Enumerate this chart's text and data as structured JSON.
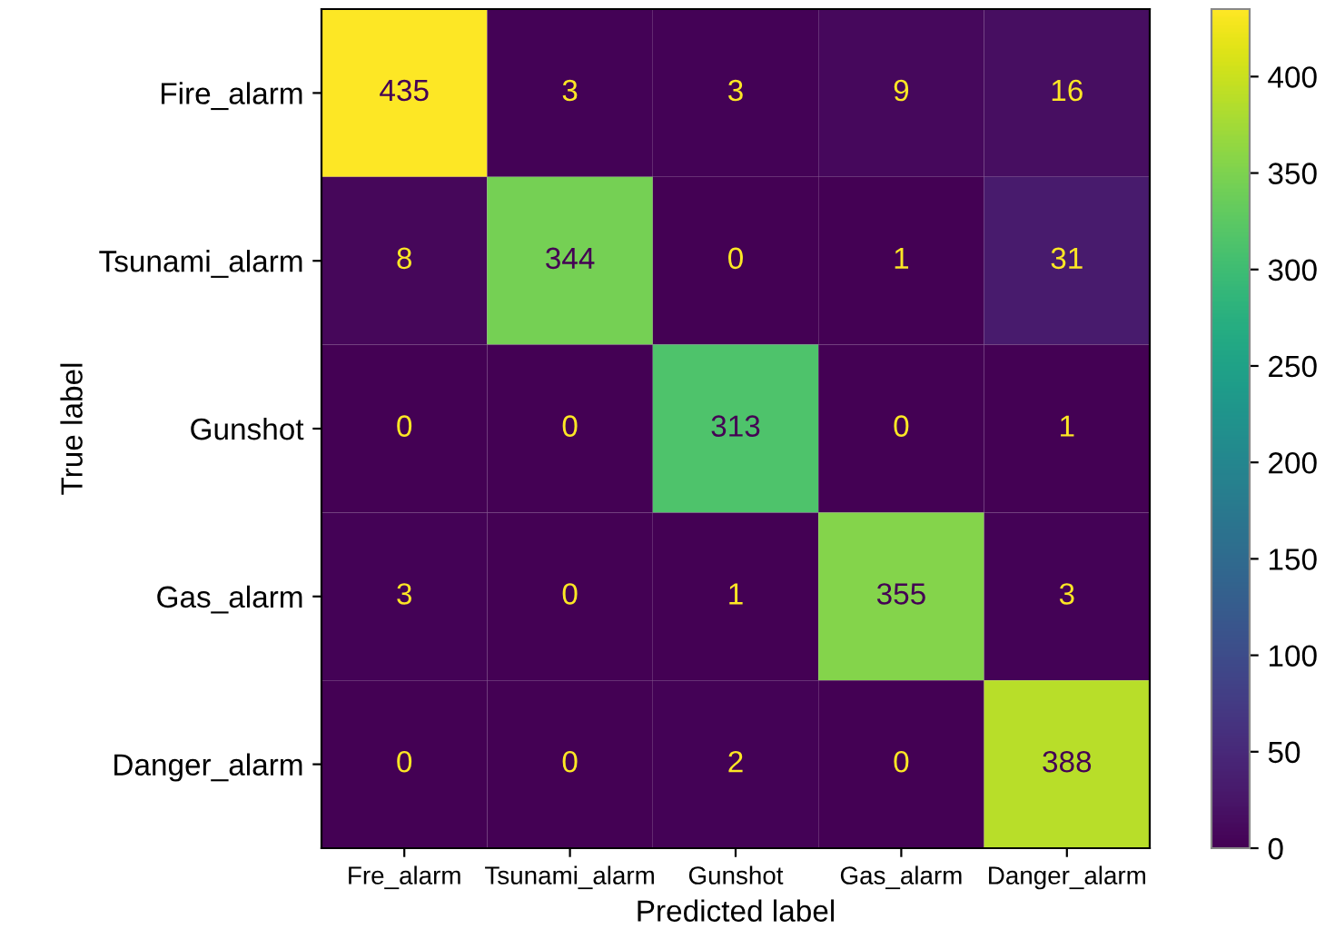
{
  "chart_data": {
    "type": "heatmap",
    "xlabel": "Predicted label",
    "ylabel": "True label",
    "categories": [
      "Fre_alarm",
      "Tsunami_alarm",
      "Gunshot",
      "Gas_alarm",
      "Danger_alarm"
    ],
    "y_categories": [
      "Fire_alarm",
      "Tsunami_alarm",
      "Gunshot",
      "Gas_alarm",
      "Danger_alarm"
    ],
    "cells": [
      [
        435,
        3,
        3,
        9,
        16
      ],
      [
        8,
        344,
        0,
        1,
        31
      ],
      [
        0,
        0,
        313,
        0,
        1
      ],
      [
        3,
        0,
        1,
        355,
        3
      ],
      [
        0,
        0,
        2,
        0,
        388
      ]
    ],
    "clim": [
      0,
      435
    ],
    "cticks": [
      0,
      50,
      100,
      150,
      200,
      250,
      300,
      350,
      400
    ],
    "data_labels": true
  }
}
